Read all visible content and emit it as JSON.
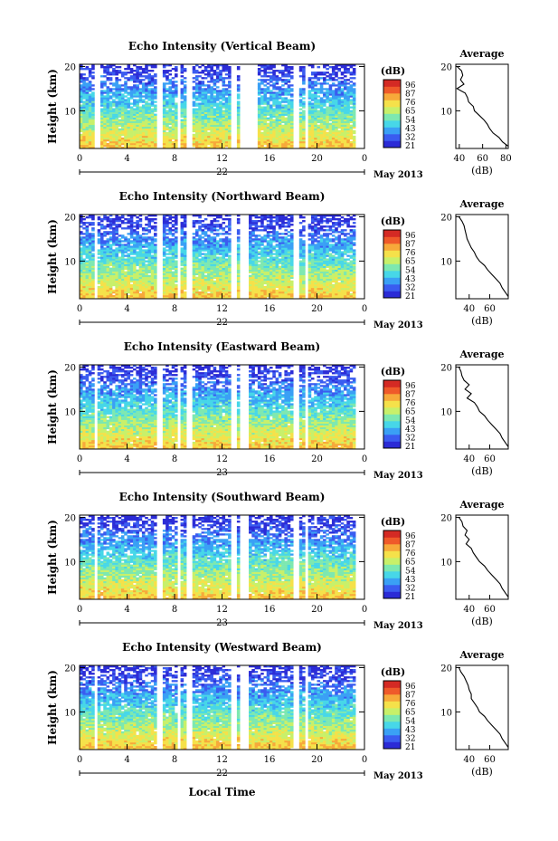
{
  "figure": {
    "x_axis_label": "Local Time",
    "date_label": "May 2013",
    "x_ticks": [
      "0",
      "4",
      "8",
      "12",
      "16",
      "20",
      "0"
    ],
    "y_ticks": [
      "20",
      "10"
    ],
    "avg_title": "Average",
    "avg_unit": "(dB)",
    "cbar_unit": "(dB)"
  },
  "colors": {
    "colormap": [
      "#2b2bd6",
      "#3a5cf0",
      "#3aa0f5",
      "#47d7e8",
      "#7de8b0",
      "#c8f06a",
      "#f5e14a",
      "#f7a93a",
      "#ef5a2a",
      "#d42a24"
    ]
  },
  "chart_data": [
    {
      "type": "heatmap",
      "title": "Echo Intensity (Vertical Beam)",
      "ylabel": "Height (km)",
      "xlabel": "",
      "x_range": [
        0,
        24
      ],
      "y_range": [
        1.5,
        20.5
      ],
      "y_ticks": [
        10,
        20
      ],
      "day_label": "22",
      "colorbar_ticks": [
        "96",
        "87",
        "76",
        "65",
        "54",
        "43",
        "32",
        "21"
      ],
      "colorbar_range": [
        21,
        96
      ],
      "gaps_hours": [
        [
          1.3,
          1.7
        ],
        [
          6.6,
          6.9
        ],
        [
          8.2,
          8.5
        ],
        [
          9.1,
          9.5
        ],
        [
          12.7,
          13.3
        ],
        [
          13.6,
          14.9
        ],
        [
          18.1,
          18.4
        ],
        [
          19.0,
          19.3
        ]
      ],
      "average_profile": {
        "xlabel": "(dB)",
        "xlim": [
          37,
          82
        ],
        "x_ticks": [
          40,
          60,
          80
        ],
        "heights_km": [
          20,
          19,
          18,
          17,
          16,
          15,
          14,
          13,
          12,
          11,
          10,
          9,
          8,
          7,
          6,
          5,
          4,
          3,
          2
        ],
        "db": [
          38,
          42,
          43,
          41,
          44,
          38,
          45,
          47,
          48,
          52,
          53,
          57,
          61,
          64,
          66,
          69,
          74,
          77,
          82
        ]
      }
    },
    {
      "type": "heatmap",
      "title": "Echo Intensity (Northward Beam)",
      "ylabel": "Height (km)",
      "xlabel": "",
      "x_range": [
        0,
        24
      ],
      "y_range": [
        1.5,
        20.5
      ],
      "y_ticks": [
        10,
        20
      ],
      "day_label": "22",
      "colorbar_ticks": [
        "96",
        "87",
        "76",
        "65",
        "54",
        "43",
        "32",
        "21"
      ],
      "colorbar_range": [
        21,
        96
      ],
      "gaps_hours": [
        [
          1.3,
          1.6
        ],
        [
          6.6,
          6.9
        ],
        [
          8.2,
          8.5
        ],
        [
          9.1,
          9.5
        ],
        [
          12.7,
          13.3
        ],
        [
          13.6,
          14.2
        ],
        [
          18.1,
          18.4
        ],
        [
          19.0,
          19.3
        ]
      ],
      "average_profile": {
        "xlabel": "(dB)",
        "xlim": [
          27,
          78
        ],
        "x_ticks": [
          40,
          60
        ],
        "heights_km": [
          20,
          19,
          18,
          17,
          16,
          15,
          14,
          13,
          12,
          11,
          10,
          9,
          8,
          7,
          6,
          5,
          4,
          3,
          2
        ],
        "db": [
          30,
          33,
          35,
          36,
          37,
          38,
          40,
          42,
          45,
          47,
          50,
          55,
          58,
          62,
          66,
          70,
          72,
          75,
          78
        ]
      }
    },
    {
      "type": "heatmap",
      "title": "Echo Intensity (Eastward Beam)",
      "ylabel": "Height (km)",
      "xlabel": "",
      "x_range": [
        0,
        24
      ],
      "y_range": [
        1.5,
        20.5
      ],
      "y_ticks": [
        10,
        20
      ],
      "day_label": "23",
      "colorbar_ticks": [
        "96",
        "87",
        "76",
        "65",
        "54",
        "43",
        "32",
        "21"
      ],
      "colorbar_range": [
        21,
        96
      ],
      "gaps_hours": [
        [
          1.3,
          1.6
        ],
        [
          6.6,
          6.9
        ],
        [
          8.2,
          8.5
        ],
        [
          9.1,
          9.5
        ],
        [
          12.7,
          13.3
        ],
        [
          13.6,
          14.2
        ],
        [
          18.1,
          18.4
        ],
        [
          19.0,
          19.3
        ]
      ],
      "average_profile": {
        "xlabel": "(dB)",
        "xlim": [
          27,
          78
        ],
        "x_ticks": [
          40,
          60
        ],
        "heights_km": [
          20,
          19,
          18,
          17,
          16,
          15,
          14,
          13,
          12,
          11,
          10,
          9,
          8,
          7,
          6,
          5,
          4,
          3,
          2
        ],
        "db": [
          30,
          32,
          33,
          35,
          40,
          36,
          42,
          38,
          45,
          48,
          50,
          55,
          58,
          62,
          66,
          70,
          72,
          75,
          78
        ]
      }
    },
    {
      "type": "heatmap",
      "title": "Echo Intensity (Southward Beam)",
      "ylabel": "Height (km)",
      "xlabel": "",
      "x_range": [
        0,
        24
      ],
      "y_range": [
        1.5,
        20.5
      ],
      "y_ticks": [
        10,
        20
      ],
      "day_label": "23",
      "colorbar_ticks": [
        "96",
        "87",
        "76",
        "65",
        "54",
        "43",
        "32",
        "21"
      ],
      "colorbar_range": [
        21,
        96
      ],
      "gaps_hours": [
        [
          1.3,
          1.6
        ],
        [
          6.6,
          6.9
        ],
        [
          8.2,
          8.5
        ],
        [
          9.1,
          9.5
        ],
        [
          12.7,
          13.3
        ],
        [
          13.6,
          14.2
        ],
        [
          18.1,
          18.4
        ],
        [
          19.0,
          19.3
        ]
      ],
      "average_profile": {
        "xlabel": "(dB)",
        "xlim": [
          27,
          78
        ],
        "x_ticks": [
          40,
          60
        ],
        "heights_km": [
          20,
          19,
          18,
          17,
          16,
          15,
          14,
          13,
          12,
          11,
          10,
          9,
          8,
          7,
          6,
          5,
          4,
          3,
          2
        ],
        "db": [
          30,
          33,
          34,
          38,
          36,
          40,
          37,
          42,
          44,
          47,
          50,
          55,
          58,
          62,
          66,
          70,
          72,
          75,
          78
        ]
      }
    },
    {
      "type": "heatmap",
      "title": "Echo Intensity (Westward Beam)",
      "ylabel": "Height (km)",
      "xlabel": "Local Time",
      "x_range": [
        0,
        24
      ],
      "y_range": [
        1.5,
        20.5
      ],
      "y_ticks": [
        10,
        20
      ],
      "day_label": "22",
      "colorbar_ticks": [
        "96",
        "87",
        "76",
        "65",
        "54",
        "43",
        "32",
        "21"
      ],
      "colorbar_range": [
        21,
        96
      ],
      "gaps_hours": [
        [
          1.3,
          1.6
        ],
        [
          6.6,
          6.9
        ],
        [
          8.2,
          8.5
        ],
        [
          9.1,
          9.5
        ],
        [
          12.7,
          13.3
        ],
        [
          13.6,
          14.2
        ],
        [
          18.1,
          18.4
        ],
        [
          19.0,
          19.3
        ]
      ],
      "average_profile": {
        "xlabel": "(dB)",
        "xlim": [
          27,
          78
        ],
        "x_ticks": [
          40,
          60
        ],
        "heights_km": [
          20,
          19,
          18,
          17,
          16,
          15,
          14,
          13,
          12,
          11,
          10,
          9,
          8,
          7,
          6,
          5,
          4,
          3,
          2
        ],
        "db": [
          30,
          32,
          35,
          37,
          39,
          40,
          42,
          42,
          45,
          48,
          50,
          55,
          58,
          62,
          66,
          70,
          72,
          75,
          78
        ]
      }
    }
  ]
}
